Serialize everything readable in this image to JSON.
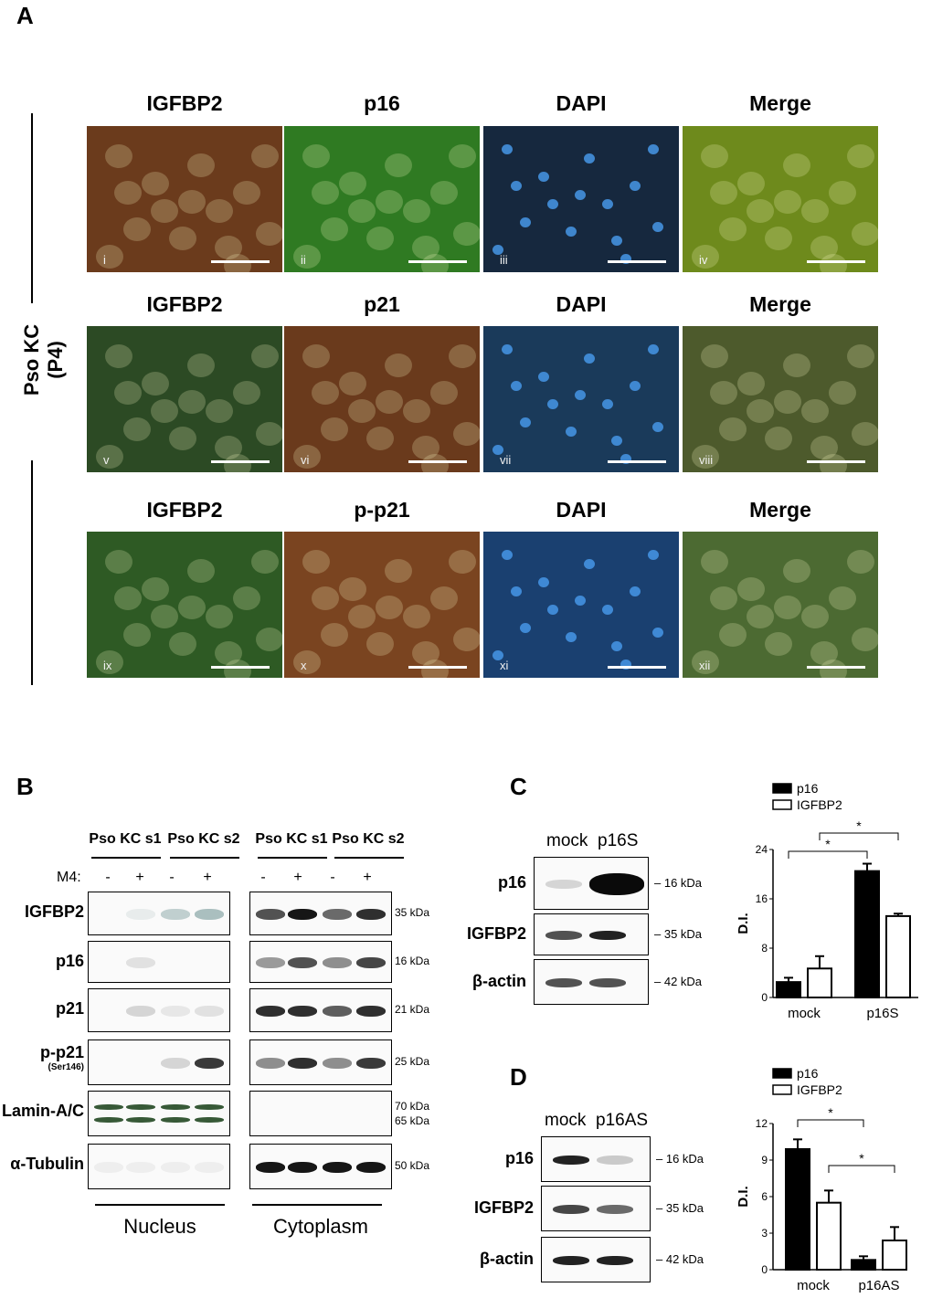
{
  "panel_a": {
    "letter": "A",
    "side_label_line1": "Pso KC",
    "side_label_line2": "(P4)",
    "rows": [
      {
        "titles": [
          "IGFBP2",
          "p16",
          "DAPI",
          "Merge"
        ],
        "romans": [
          "i",
          "ii",
          "iii",
          "iv"
        ],
        "colors": [
          "#6b3b1c",
          "#2f7a22",
          "#16283e",
          "#6e8a1c"
        ]
      },
      {
        "titles": [
          "IGFBP2",
          "p21",
          "DAPI",
          "Merge"
        ],
        "romans": [
          "v",
          "vi",
          "vii",
          "viii"
        ],
        "colors": [
          "#2c4a24",
          "#6a3a1c",
          "#1a3a5a",
          "#4d5a2c"
        ]
      },
      {
        "titles": [
          "IGFBP2",
          "p-p21",
          "DAPI",
          "Merge"
        ],
        "romans": [
          "ix",
          "x",
          "xi",
          "xii"
        ],
        "colors": [
          "#2e5a24",
          "#7a4420",
          "#1a4070",
          "#4c6a32"
        ]
      }
    ]
  },
  "panel_b": {
    "letter": "B",
    "groups": [
      "Pso KC s1",
      "Pso KC s2",
      "Pso KC s1",
      "Pso KC s2"
    ],
    "treatment_label": "M4:",
    "treatment_signs": [
      "-",
      "+",
      "-",
      "+",
      "-",
      "+",
      "-",
      "+"
    ],
    "rows": [
      {
        "label": "IGFBP2",
        "kda": [
          "35 kDa"
        ]
      },
      {
        "label": "p16",
        "kda": [
          "16 kDa"
        ]
      },
      {
        "label": "p21",
        "kda": [
          "21 kDa"
        ]
      },
      {
        "label": "p-p21",
        "sublabel": "(Ser146)",
        "kda": [
          "25 kDa"
        ]
      },
      {
        "label": "Lamin-A/C",
        "kda": [
          "70 kDa",
          "65 kDa"
        ]
      },
      {
        "label": "α-Tubulin",
        "kda": [
          "50 kDa"
        ]
      }
    ],
    "fraction_labels": [
      "Nucleus",
      "Cytoplasm"
    ]
  },
  "panel_c": {
    "letter": "C",
    "lanes": [
      "mock",
      "p16S"
    ],
    "rows": [
      {
        "label": "p16",
        "kda": "16 kDa"
      },
      {
        "label": "IGFBP2",
        "kda": "35 kDa"
      },
      {
        "label": "β-actin",
        "kda": "42 kDa"
      }
    ],
    "chart_data": {
      "type": "bar",
      "categories": [
        "mock",
        "p16S"
      ],
      "series": [
        {
          "name": "p16",
          "values": [
            2.5,
            20.5
          ],
          "errors": [
            0.7,
            1.2
          ]
        },
        {
          "name": "IGFBP2",
          "values": [
            4.7,
            13.2
          ],
          "errors": [
            2.0,
            0.4
          ]
        }
      ],
      "ylabel": "D.I.",
      "ylim": [
        0,
        24
      ],
      "yticks": [
        "0",
        "8",
        "16",
        "24"
      ],
      "legend": "top-left",
      "significance": [
        "*",
        "*"
      ]
    }
  },
  "panel_d": {
    "letter": "D",
    "lanes": [
      "mock",
      "p16AS"
    ],
    "rows": [
      {
        "label": "p16",
        "kda": "16 kDa"
      },
      {
        "label": "IGFBP2",
        "kda": "35 kDa"
      },
      {
        "label": "β-actin",
        "kda": "42 kDa"
      }
    ],
    "chart_data": {
      "type": "bar",
      "categories": [
        "mock",
        "p16AS"
      ],
      "series": [
        {
          "name": "p16",
          "values": [
            9.9,
            0.8
          ],
          "errors": [
            0.8,
            0.3
          ]
        },
        {
          "name": "IGFBP2",
          "values": [
            5.5,
            2.4
          ],
          "errors": [
            1.0,
            1.1
          ]
        }
      ],
      "ylabel": "D.I.",
      "ylim": [
        0,
        12
      ],
      "yticks": [
        "0",
        "3",
        "6",
        "9",
        "12"
      ],
      "legend": "top-left",
      "significance": [
        "*",
        "*"
      ]
    }
  }
}
